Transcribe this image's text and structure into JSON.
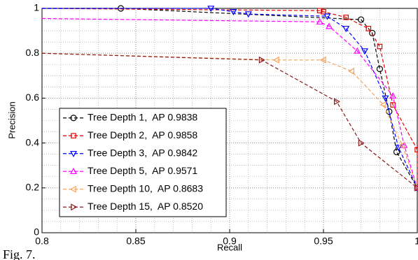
{
  "chart_data": {
    "type": "line",
    "xlabel": "Recall",
    "ylabel": "Precision",
    "caption": "Fig. 7.",
    "xlim": [
      0.8,
      1
    ],
    "ylim": [
      0,
      1
    ],
    "xticks": [
      0.8,
      0.85,
      0.9,
      0.95,
      1
    ],
    "yticks": [
      0,
      0.2,
      0.4,
      0.6,
      0.8,
      1
    ],
    "grid": true,
    "minor_grid": true,
    "legend": "lower left",
    "series": [
      {
        "name": "Tree Depth 1,  AP 0.9838",
        "color": "#000000",
        "marker": "circle",
        "x": [
          0.8,
          0.842,
          0.97,
          0.976,
          0.98,
          0.985,
          0.989,
          1
        ],
        "values": [
          1,
          1,
          0.95,
          0.89,
          0.73,
          0.54,
          0.36,
          0.2
        ]
      },
      {
        "name": "Tree Depth 2,  AP 0.9858",
        "color": "#e00000",
        "marker": "square",
        "x": [
          0.8,
          0.948,
          0.95,
          0.962,
          0.974,
          0.98,
          0.987,
          1,
          1
        ],
        "values": [
          1,
          0.99,
          0.985,
          0.96,
          0.91,
          0.83,
          0.57,
          0.37,
          0.2
        ]
      },
      {
        "name": "Tree Depth 3,  AP 0.9842",
        "color": "#0000ff",
        "marker": "triangle-down",
        "x": [
          0.8,
          0.89,
          0.902,
          0.91,
          0.952,
          0.962,
          0.972,
          0.983,
          0.99,
          1
        ],
        "values": [
          1,
          1,
          0.985,
          0.975,
          0.965,
          0.91,
          0.81,
          0.6,
          0.38,
          0.2
        ]
      },
      {
        "name": "Tree Depth 5,  AP 0.9571",
        "color": "#ff00ff",
        "marker": "triangle-up",
        "x": [
          0.8,
          0.948,
          0.953,
          0.968,
          0.987,
          0.993,
          1
        ],
        "values": [
          0.955,
          0.94,
          0.92,
          0.81,
          0.61,
          0.39,
          0.2
        ]
      },
      {
        "name": "Tree Depth 10,  AP 0.8683",
        "color": "#f4a460",
        "marker": "triangle-left",
        "x": [
          0.8,
          0.925,
          0.95,
          0.965,
          0.982,
          0.992,
          1
        ],
        "values": [
          0.8,
          0.77,
          0.77,
          0.72,
          0.57,
          0.39,
          0.2
        ]
      },
      {
        "name": "Tree Depth 15,  AP 0.8520",
        "color": "#8b1a1a",
        "marker": "triangle-right",
        "x": [
          0.8,
          0.917,
          0.957,
          0.97,
          1
        ],
        "values": [
          0.8,
          0.77,
          0.585,
          0.4,
          0.2
        ]
      }
    ]
  }
}
